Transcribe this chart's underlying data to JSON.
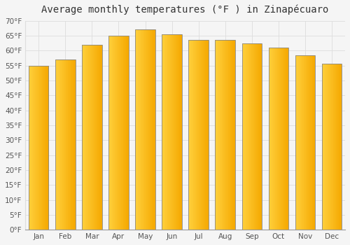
{
  "title": "Average monthly temperatures (°F ) in Zinapécuaro",
  "months": [
    "Jan",
    "Feb",
    "Mar",
    "Apr",
    "May",
    "Jun",
    "Jul",
    "Aug",
    "Sep",
    "Oct",
    "Nov",
    "Dec"
  ],
  "values": [
    55,
    57,
    62,
    65,
    67,
    65.5,
    63.5,
    63.5,
    62.5,
    61,
    58.5,
    55.5
  ],
  "bar_color_left": "#FFD060",
  "bar_color_right": "#F5A800",
  "bar_edge_color": "#888888",
  "ylim": [
    0,
    70
  ],
  "yticks": [
    0,
    5,
    10,
    15,
    20,
    25,
    30,
    35,
    40,
    45,
    50,
    55,
    60,
    65,
    70
  ],
  "background_color": "#f5f5f5",
  "plot_bg_color": "#f5f5f5",
  "grid_color": "#dddddd",
  "title_fontsize": 10,
  "tick_fontsize": 7.5,
  "title_color": "#333333",
  "tick_color": "#555555"
}
